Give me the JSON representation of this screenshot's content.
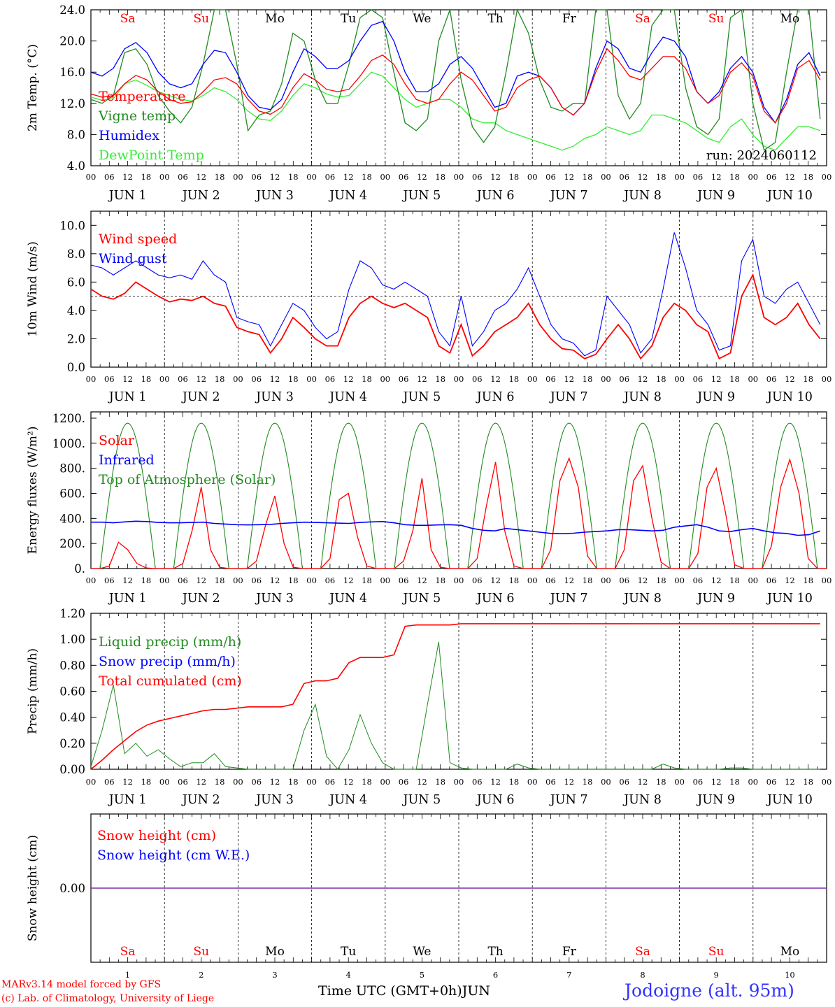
{
  "colors": {
    "red": "#ff0000",
    "green": "#228b22",
    "blue": "#0000ff",
    "lightgreen": "#33ee33",
    "purple": "#7b2fb0",
    "text": "#000000"
  },
  "x_tick_labels": [
    "00",
    "06",
    "12",
    "18"
  ],
  "date_labels": [
    "JUN  1",
    "JUN  2",
    "JUN  3",
    "JUN  4",
    "JUN  5",
    "JUN  6",
    "JUN  7",
    "JUN  8",
    "JUN  9",
    "JUN 10"
  ],
  "weekdays": [
    {
      "label": "Sa",
      "color": "#ff0000"
    },
    {
      "label": "Su",
      "color": "#ff0000"
    },
    {
      "label": "Mo",
      "color": "#000000"
    },
    {
      "label": "Tu",
      "color": "#000000"
    },
    {
      "label": "We",
      "color": "#000000"
    },
    {
      "label": "Th",
      "color": "#000000"
    },
    {
      "label": "Fr",
      "color": "#000000"
    },
    {
      "label": "Sa",
      "color": "#ff0000"
    },
    {
      "label": "Su",
      "color": "#ff0000"
    },
    {
      "label": "Mo",
      "color": "#000000"
    }
  ],
  "day_numbers": [
    "1",
    "2",
    "3",
    "4",
    "5",
    "6",
    "7",
    "8",
    "9",
    "10"
  ],
  "footer": {
    "line1": "MARv3.14 model forced by GFS",
    "line2": "(c) Lab. of Climatology, University of Liege",
    "axis_title": "Time UTC (GMT+0h)",
    "month": "JUN",
    "location": "Jodoigne (alt. 95m)"
  },
  "chart_data": [
    {
      "type": "line",
      "ylabel": "2m Temp. (°C)",
      "ylim": [
        4.0,
        24.0
      ],
      "yticks": [
        "4.0",
        "8.0",
        "12.0",
        "16.0",
        "20.0",
        "24.0"
      ],
      "run_label": "run: 2024060112",
      "show_weekdays": true,
      "x_unit": "hours since 2024-06-01 00 UTC (3-hourly)",
      "series": [
        {
          "name": "Temperature",
          "color": "#ff0000",
          "values": [
            13.2,
            12.8,
            13.0,
            14.5,
            15.6,
            15.0,
            13.5,
            12.5,
            12.0,
            12.2,
            13.5,
            15.0,
            15.3,
            14.5,
            12.5,
            11.0,
            10.6,
            11.5,
            14.0,
            15.8,
            15.0,
            13.8,
            13.5,
            13.8,
            15.5,
            17.5,
            18.2,
            17.0,
            14.5,
            12.5,
            12.0,
            12.5,
            14.5,
            16.0,
            15.0,
            13.0,
            11.0,
            11.5,
            14.0,
            15.0,
            15.5,
            14.0,
            11.5,
            10.5,
            12.0,
            16.0,
            19.0,
            17.5,
            15.5,
            15.0,
            16.5,
            18.0,
            18.0,
            16.5,
            13.5,
            12.0,
            13.0,
            16.0,
            17.2,
            15.5,
            11.0,
            9.5,
            12.0,
            16.5,
            17.5,
            15.0
          ]
        },
        {
          "name": "Vigne temp",
          "color": "#228b22",
          "values": [
            12.5,
            12.0,
            13.0,
            18.5,
            19.0,
            17.0,
            13.0,
            11.0,
            9.5,
            11.5,
            17.0,
            24.0,
            24.0,
            17.0,
            8.5,
            10.5,
            11.0,
            14.5,
            21.0,
            20.0,
            15.0,
            12.0,
            12.0,
            17.0,
            23.0,
            24.0,
            23.0,
            16.0,
            9.5,
            8.5,
            10.0,
            20.0,
            24.0,
            15.0,
            9.0,
            7.0,
            9.0,
            16.0,
            24.0,
            21.0,
            15.0,
            11.5,
            11.0,
            12.0,
            12.0,
            24.0,
            24.0,
            13.0,
            10.0,
            12.0,
            22.0,
            24.0,
            24.0,
            14.0,
            9.0,
            8.0,
            10.0,
            23.0,
            24.0,
            12.0,
            6.0,
            7.0,
            16.0,
            24.0,
            24.0,
            10.0
          ]
        },
        {
          "name": "Humidex",
          "color": "#0000ff",
          "values": [
            16.0,
            15.5,
            16.5,
            19.0,
            19.8,
            18.5,
            16.0,
            14.5,
            14.0,
            14.5,
            17.0,
            18.8,
            18.5,
            16.0,
            13.0,
            11.5,
            11.2,
            12.5,
            16.0,
            19.0,
            18.0,
            16.5,
            16.5,
            17.5,
            20.0,
            22.0,
            22.5,
            20.0,
            16.0,
            13.5,
            13.5,
            14.5,
            17.0,
            18.0,
            16.5,
            14.0,
            11.5,
            12.0,
            15.5,
            16.0,
            15.5,
            14.0,
            11.5,
            10.5,
            12.0,
            16.5,
            20.0,
            19.0,
            16.5,
            16.0,
            18.5,
            20.5,
            20.0,
            18.0,
            13.5,
            12.0,
            13.5,
            16.5,
            18.0,
            16.0,
            11.5,
            9.5,
            12.5,
            17.0,
            18.5,
            15.5
          ]
        },
        {
          "name": "DewPoint Temp",
          "color": "#33ee33",
          "values": [
            12.8,
            12.4,
            12.6,
            14.5,
            15.0,
            14.3,
            13.5,
            13.0,
            12.5,
            12.3,
            13.0,
            14.0,
            13.5,
            12.5,
            11.0,
            10.0,
            9.8,
            11.0,
            13.0,
            14.5,
            14.0,
            13.2,
            12.8,
            13.0,
            14.5,
            16.0,
            15.5,
            14.0,
            12.5,
            11.5,
            12.0,
            12.5,
            12.5,
            11.5,
            10.0,
            9.5,
            9.5,
            8.5,
            8.0,
            7.5,
            7.0,
            6.5,
            6.0,
            6.5,
            7.5,
            8.0,
            9.0,
            8.5,
            8.0,
            8.5,
            10.5,
            10.5,
            10.0,
            9.5,
            8.5,
            7.5,
            7.0,
            9.0,
            10.0,
            8.0,
            6.5,
            6.0,
            7.5,
            9.0,
            9.0,
            8.5
          ]
        }
      ]
    },
    {
      "type": "line",
      "ylabel": "10m Wind (m/s)",
      "ylim": [
        0.0,
        11.0
      ],
      "yticks": [
        "0.0",
        "2.0",
        "4.0",
        "6.0",
        "8.0",
        "10.0"
      ],
      "reference_line": 5.0,
      "series": [
        {
          "name": "Wind speed",
          "color": "#ff0000",
          "values": [
            5.5,
            5.0,
            4.8,
            5.2,
            6.0,
            5.5,
            5.0,
            4.6,
            4.8,
            4.7,
            5.0,
            4.5,
            4.3,
            2.8,
            2.5,
            2.3,
            1.0,
            2.0,
            3.5,
            2.8,
            2.0,
            1.5,
            1.5,
            3.5,
            4.5,
            5.0,
            4.5,
            4.2,
            4.5,
            4.0,
            3.5,
            1.5,
            1.0,
            3.0,
            0.8,
            1.5,
            2.5,
            3.0,
            3.5,
            4.5,
            3.0,
            2.0,
            1.3,
            1.2,
            0.6,
            0.9,
            2.0,
            3.0,
            2.0,
            0.6,
            1.5,
            3.5,
            4.5,
            4.0,
            3.0,
            2.5,
            0.6,
            1.0,
            5.0,
            6.5,
            3.5,
            3.0,
            3.5,
            4.5,
            3.0,
            2.0
          ]
        },
        {
          "name": "Wind gust",
          "color": "#0000ff",
          "values": [
            7.2,
            7.0,
            6.5,
            7.0,
            7.5,
            7.0,
            6.5,
            6.3,
            6.5,
            6.2,
            7.5,
            6.5,
            6.0,
            3.5,
            3.2,
            3.0,
            1.5,
            3.0,
            4.5,
            4.0,
            2.8,
            2.0,
            2.5,
            5.5,
            7.5,
            7.0,
            5.8,
            5.5,
            6.0,
            5.5,
            5.0,
            2.5,
            1.5,
            5.0,
            1.5,
            2.5,
            4.0,
            4.5,
            5.5,
            7.0,
            5.0,
            3.0,
            2.0,
            1.7,
            0.8,
            1.2,
            5.0,
            4.0,
            3.0,
            1.0,
            2.0,
            5.5,
            9.5,
            7.0,
            4.0,
            3.0,
            1.2,
            1.5,
            7.5,
            9.0,
            5.0,
            4.5,
            5.5,
            6.0,
            4.5,
            3.0
          ]
        }
      ]
    },
    {
      "type": "line",
      "ylabel": "Energy fluxes (W/m²)",
      "ylim": [
        0,
        1250
      ],
      "yticks": [
        "0.",
        "200.",
        "400.",
        "600.",
        "800.",
        "1000.",
        "1200."
      ],
      "series": [
        {
          "name": "Solar",
          "color": "#ff0000",
          "values_by_day_hours_3_to_21": [
            [
              0,
              20,
              210,
              150,
              40,
              5,
              0
            ],
            [
              0,
              40,
              300,
              650,
              150,
              10,
              0
            ],
            [
              0,
              60,
              350,
              580,
              200,
              10,
              0
            ],
            [
              0,
              80,
              550,
              600,
              250,
              20,
              0
            ],
            [
              0,
              60,
              300,
              720,
              150,
              10,
              0
            ],
            [
              0,
              80,
              500,
              850,
              300,
              20,
              0
            ],
            [
              0,
              150,
              700,
              880,
              650,
              100,
              0
            ],
            [
              0,
              150,
              700,
              820,
              400,
              50,
              0
            ],
            [
              0,
              120,
              650,
              800,
              450,
              30,
              0
            ],
            [
              0,
              180,
              650,
              870,
              600,
              80,
              0
            ]
          ]
        },
        {
          "name": "Infrared",
          "color": "#0000ff",
          "values": [
            370,
            370,
            365,
            372,
            378,
            375,
            368,
            365,
            365,
            368,
            370,
            360,
            355,
            350,
            348,
            350,
            352,
            360,
            365,
            370,
            368,
            365,
            362,
            360,
            368,
            372,
            375,
            365,
            350,
            345,
            345,
            348,
            350,
            345,
            320,
            305,
            300,
            320,
            310,
            300,
            290,
            280,
            278,
            282,
            290,
            295,
            300,
            310,
            310,
            305,
            300,
            305,
            330,
            340,
            350,
            330,
            300,
            295,
            310,
            320,
            300,
            285,
            280,
            265,
            270,
            300
          ]
        },
        {
          "name": "Top of Atmosphere (Solar)",
          "color": "#228b22",
          "peak": 1160,
          "sunrise_hour": 3.0,
          "sunset_hour": 21.0
        }
      ]
    },
    {
      "type": "line",
      "ylabel": "Precip (mm/h)",
      "ylim": [
        0.0,
        1.2
      ],
      "yticks": [
        "0.00",
        "0.20",
        "0.40",
        "0.60",
        "0.80",
        "1.00",
        "1.20"
      ],
      "series": [
        {
          "name": "Liquid precip (mm/h)",
          "color": "#228b22",
          "values": [
            0.02,
            0.3,
            0.65,
            0.12,
            0.2,
            0.1,
            0.15,
            0.08,
            0.02,
            0.05,
            0.05,
            0.12,
            0.02,
            0.01,
            0.0,
            0.0,
            0.0,
            0.0,
            0.0,
            0.3,
            0.5,
            0.1,
            0.0,
            0.15,
            0.42,
            0.2,
            0.05,
            0.0,
            0.0,
            0.0,
            0.5,
            0.98,
            0.05,
            0.01,
            0.0,
            0.0,
            0.0,
            0.0,
            0.04,
            0.01,
            0.0,
            0.0,
            0.0,
            0.0,
            0.0,
            0.0,
            0.0,
            0.0,
            0.0,
            0.0,
            0.0,
            0.04,
            0.01,
            0.0,
            0.0,
            0.0,
            0.0,
            0.01,
            0.01,
            0.0,
            0.0,
            0.0,
            0.0,
            0.0,
            0.0,
            0.0
          ]
        },
        {
          "name": "Snow precip (mm/h)",
          "color": "#0000ff",
          "values": []
        },
        {
          "name": "Total cumulated (cm)",
          "color": "#ff0000",
          "values": [
            0.0,
            0.07,
            0.15,
            0.22,
            0.29,
            0.34,
            0.37,
            0.39,
            0.41,
            0.43,
            0.45,
            0.46,
            0.46,
            0.47,
            0.48,
            0.48,
            0.48,
            0.48,
            0.5,
            0.66,
            0.68,
            0.68,
            0.7,
            0.82,
            0.86,
            0.86,
            0.86,
            0.88,
            1.1,
            1.11,
            1.11,
            1.11,
            1.11,
            1.12,
            1.12,
            1.12,
            1.12,
            1.12,
            1.12,
            1.12,
            1.12,
            1.12,
            1.12,
            1.12,
            1.12,
            1.12,
            1.12,
            1.12,
            1.12,
            1.12,
            1.12,
            1.12,
            1.12,
            1.12,
            1.12,
            1.12,
            1.12,
            1.12,
            1.12,
            1.12,
            1.12,
            1.12,
            1.12,
            1.12,
            1.12,
            1.12
          ]
        }
      ]
    },
    {
      "type": "line",
      "ylabel": "Snow height (cm)",
      "yticks": [
        "0.00"
      ],
      "series": [
        {
          "name": "Snow height (cm)",
          "color": "#ff0000",
          "values": [
            0,
            0
          ]
        },
        {
          "name": "Snow height (cm W.E.)",
          "color": "#0000ff",
          "values": [
            0,
            0
          ]
        }
      ]
    }
  ]
}
